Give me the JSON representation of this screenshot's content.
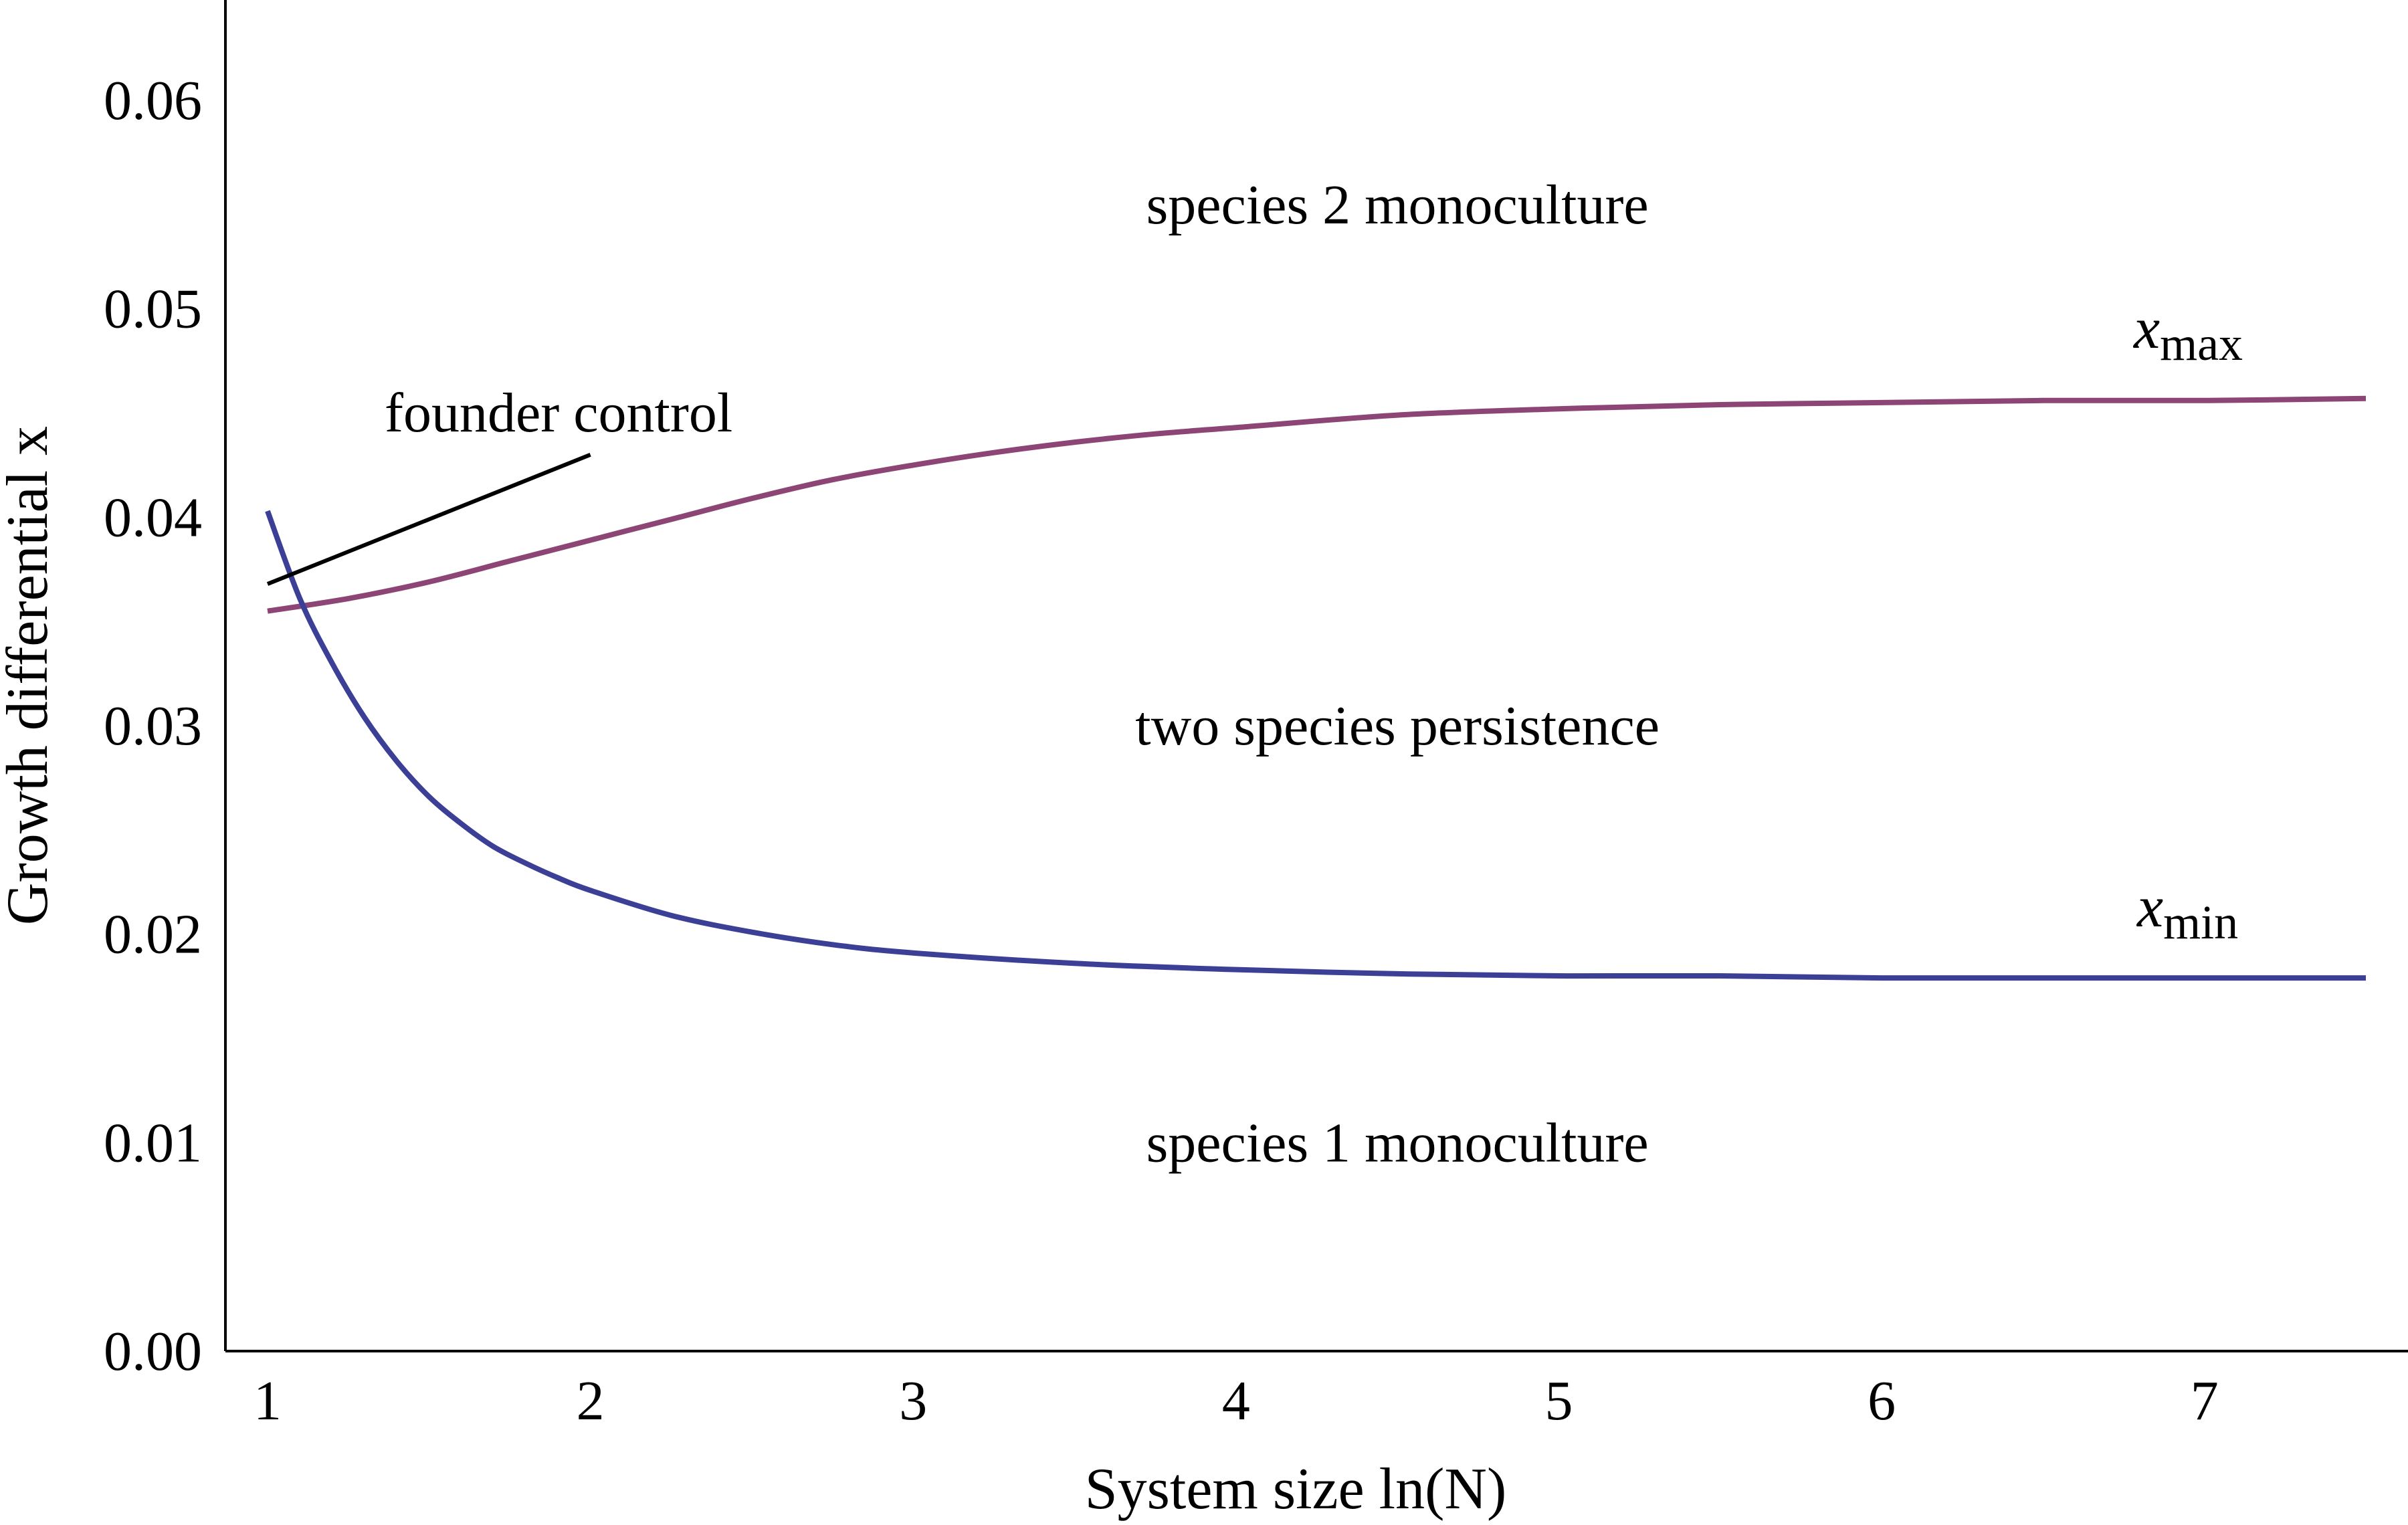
{
  "chart_data": {
    "type": "line",
    "xlabel": "System size ln(N)",
    "ylabel": "Growth differential x",
    "xlim": [
      0.87,
      7.5
    ],
    "ylim": [
      0,
      0.065
    ],
    "xticks": [
      "1",
      "2",
      "3",
      "4",
      "5",
      "6",
      "7"
    ],
    "yticks": [
      "0.00",
      "0.01",
      "0.02",
      "0.03",
      "0.04",
      "0.05",
      "0.06"
    ],
    "grid": false,
    "series": [
      {
        "name": "x_max",
        "label_main": "x",
        "label_sub": "max",
        "color": "#8c4575",
        "x": [
          1,
          1.25,
          1.5,
          1.75,
          2,
          2.25,
          2.5,
          2.75,
          3,
          3.25,
          3.5,
          3.75,
          4,
          4.5,
          5,
          5.5,
          6,
          6.5,
          7,
          7.5
        ],
        "y": [
          0.0355,
          0.0361,
          0.0369,
          0.0379,
          0.0389,
          0.0399,
          0.0409,
          0.0418,
          0.0425,
          0.0431,
          0.0436,
          0.044,
          0.0443,
          0.0449,
          0.0452,
          0.0454,
          0.0455,
          0.0456,
          0.0456,
          0.0457
        ]
      },
      {
        "name": "x_min",
        "label_main": "x",
        "label_sub": "min",
        "color": "#3c3f96",
        "x": [
          1,
          1.1,
          1.2,
          1.3,
          1.4,
          1.5,
          1.6,
          1.7,
          1.8,
          1.9,
          2,
          2.25,
          2.5,
          2.75,
          3,
          3.5,
          4,
          4.5,
          5,
          5.5,
          6,
          6.5,
          7,
          7.5
        ],
        "y": [
          0.0403,
          0.0361,
          0.033,
          0.0304,
          0.0283,
          0.0266,
          0.0253,
          0.0242,
          0.0234,
          0.0227,
          0.0221,
          0.0209,
          0.0201,
          0.0195,
          0.0191,
          0.0186,
          0.0183,
          0.0181,
          0.018,
          0.018,
          0.0179,
          0.0179,
          0.0179,
          0.0179
        ]
      }
    ],
    "annotations": {
      "founder_control": {
        "text": "founder control",
        "line_x": [
          1.0,
          2.0
        ],
        "line_y": [
          0.0368,
          0.043
        ],
        "color": "#000000"
      },
      "regions": [
        {
          "key": "species2",
          "text": "species 2 monoculture",
          "x": 4.5,
          "y": 0.055
        },
        {
          "key": "two_species",
          "text": "two species persistence",
          "x": 4.5,
          "y": 0.03
        },
        {
          "key": "species1",
          "text": "species 1 monoculture",
          "x": 4.5,
          "y": 0.01
        }
      ]
    }
  }
}
